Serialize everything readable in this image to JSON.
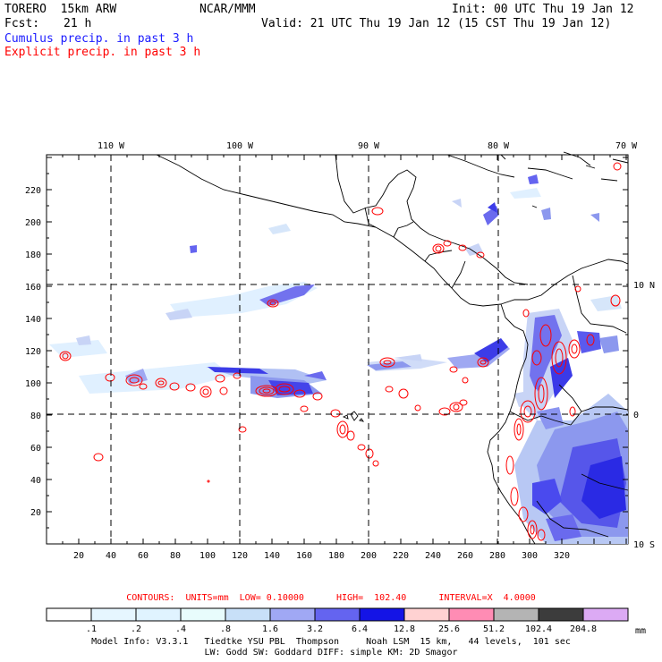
{
  "header": {
    "model": "TORERO  15km ARW",
    "org": "NCAR/MMM",
    "init": "Init: 00 UTC Thu 19 Jan 12",
    "fcst_label": "Fcst:",
    "fcst_value": "21 h",
    "valid": "Valid: 21 UTC Thu 19 Jan 12 (15 CST Thu 19 Jan 12)",
    "legend_cumulus": "Cumulus precip. in past 3 h",
    "legend_explicit": "Explicit precip. in past 3 h"
  },
  "colors": {
    "cumulus": "#1a1aff",
    "explicit": "#ff0000"
  },
  "map": {
    "lon_labels": [
      "110 W",
      "100 W",
      "90 W",
      "80 W",
      "70 W"
    ],
    "lat_labels": [
      "10 N",
      "0",
      "10 S"
    ],
    "x_ticks": [
      "20",
      "40",
      "60",
      "80",
      "100",
      "120",
      "140",
      "160",
      "180",
      "200",
      "220",
      "240",
      "260",
      "280",
      "300",
      "320"
    ],
    "y_ticks": [
      "20",
      "40",
      "60",
      "80",
      "100",
      "120",
      "140",
      "160",
      "180",
      "200",
      "220"
    ]
  },
  "colorbar": {
    "contours_text": "CONTOURS:  UNITS=mm  LOW= 0.10000      HIGH=  102.40      INTERVAL=X  4.0000",
    "labels": [
      ".1",
      ".2",
      ".4",
      ".8",
      "1.6",
      "3.2",
      "6.4",
      "12.8",
      "25.6",
      "51.2",
      "102.4",
      "204.8"
    ],
    "unit": "mm",
    "fills": [
      "#ffffff",
      "#e6f6ff",
      "#e0f3ff",
      "#e8fcfc",
      "#c8e0f8",
      "#a0a8f4",
      "#6464f0",
      "#1414e6",
      "#ffd2d2",
      "#ff8cb4",
      "#b4b4b4",
      "#3c3c3c",
      "#dcaaf4"
    ]
  },
  "footer": {
    "line1": "Model Info: V3.3.1   Tiedtke YSU PBL  Thompson     Noah LSM  15 km,   44 levels,  101 sec",
    "line2": "LW: Godd SW: Goddard DIFF: simple KM: 2D Smagor"
  }
}
